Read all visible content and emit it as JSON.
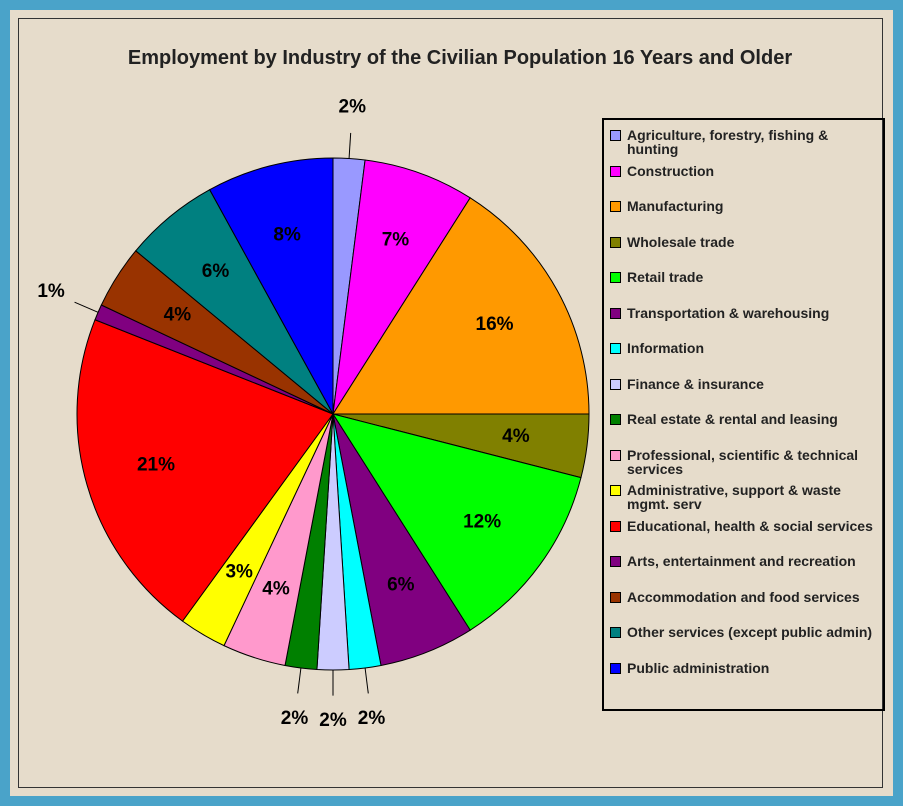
{
  "chart_data": {
    "type": "pie",
    "title": "Employment by Industry of the Civilian Population 16 Years and Older",
    "categories": [
      "Agriculture, forestry, fishing & hunting",
      "Construction",
      "Manufacturing",
      "Wholesale trade",
      "Retail trade",
      "Transportation & warehousing",
      "Information",
      "Finance & insurance",
      "Real estate & rental and leasing",
      "Professional, scientific & technical services",
      "Administrative, support & waste mgmt. serv",
      "Educational, health & social services",
      "Arts, entertainment and recreation",
      "Accommodation and food services",
      "Other services (except public admin)",
      "Public administration"
    ],
    "values": [
      2,
      7,
      16,
      4,
      12,
      6,
      2,
      2,
      2,
      4,
      3,
      21,
      1,
      4,
      6,
      8
    ],
    "value_labels": [
      "2%",
      "7%",
      "16%",
      "4%",
      "12%",
      "6%",
      "2%",
      "2%",
      "2%",
      "4%",
      "3%",
      "21%",
      "1%",
      "4%",
      "6%",
      "8%"
    ],
    "colors": [
      "#9999ff",
      "#ff00ff",
      "#ff9900",
      "#808000",
      "#00ff00",
      "#800080",
      "#00ffff",
      "#ccccff",
      "#008000",
      "#ff99cc",
      "#ffff00",
      "#ff0000",
      "#800080",
      "#993300",
      "#008080",
      "#0000ff"
    ],
    "legend": "right"
  }
}
